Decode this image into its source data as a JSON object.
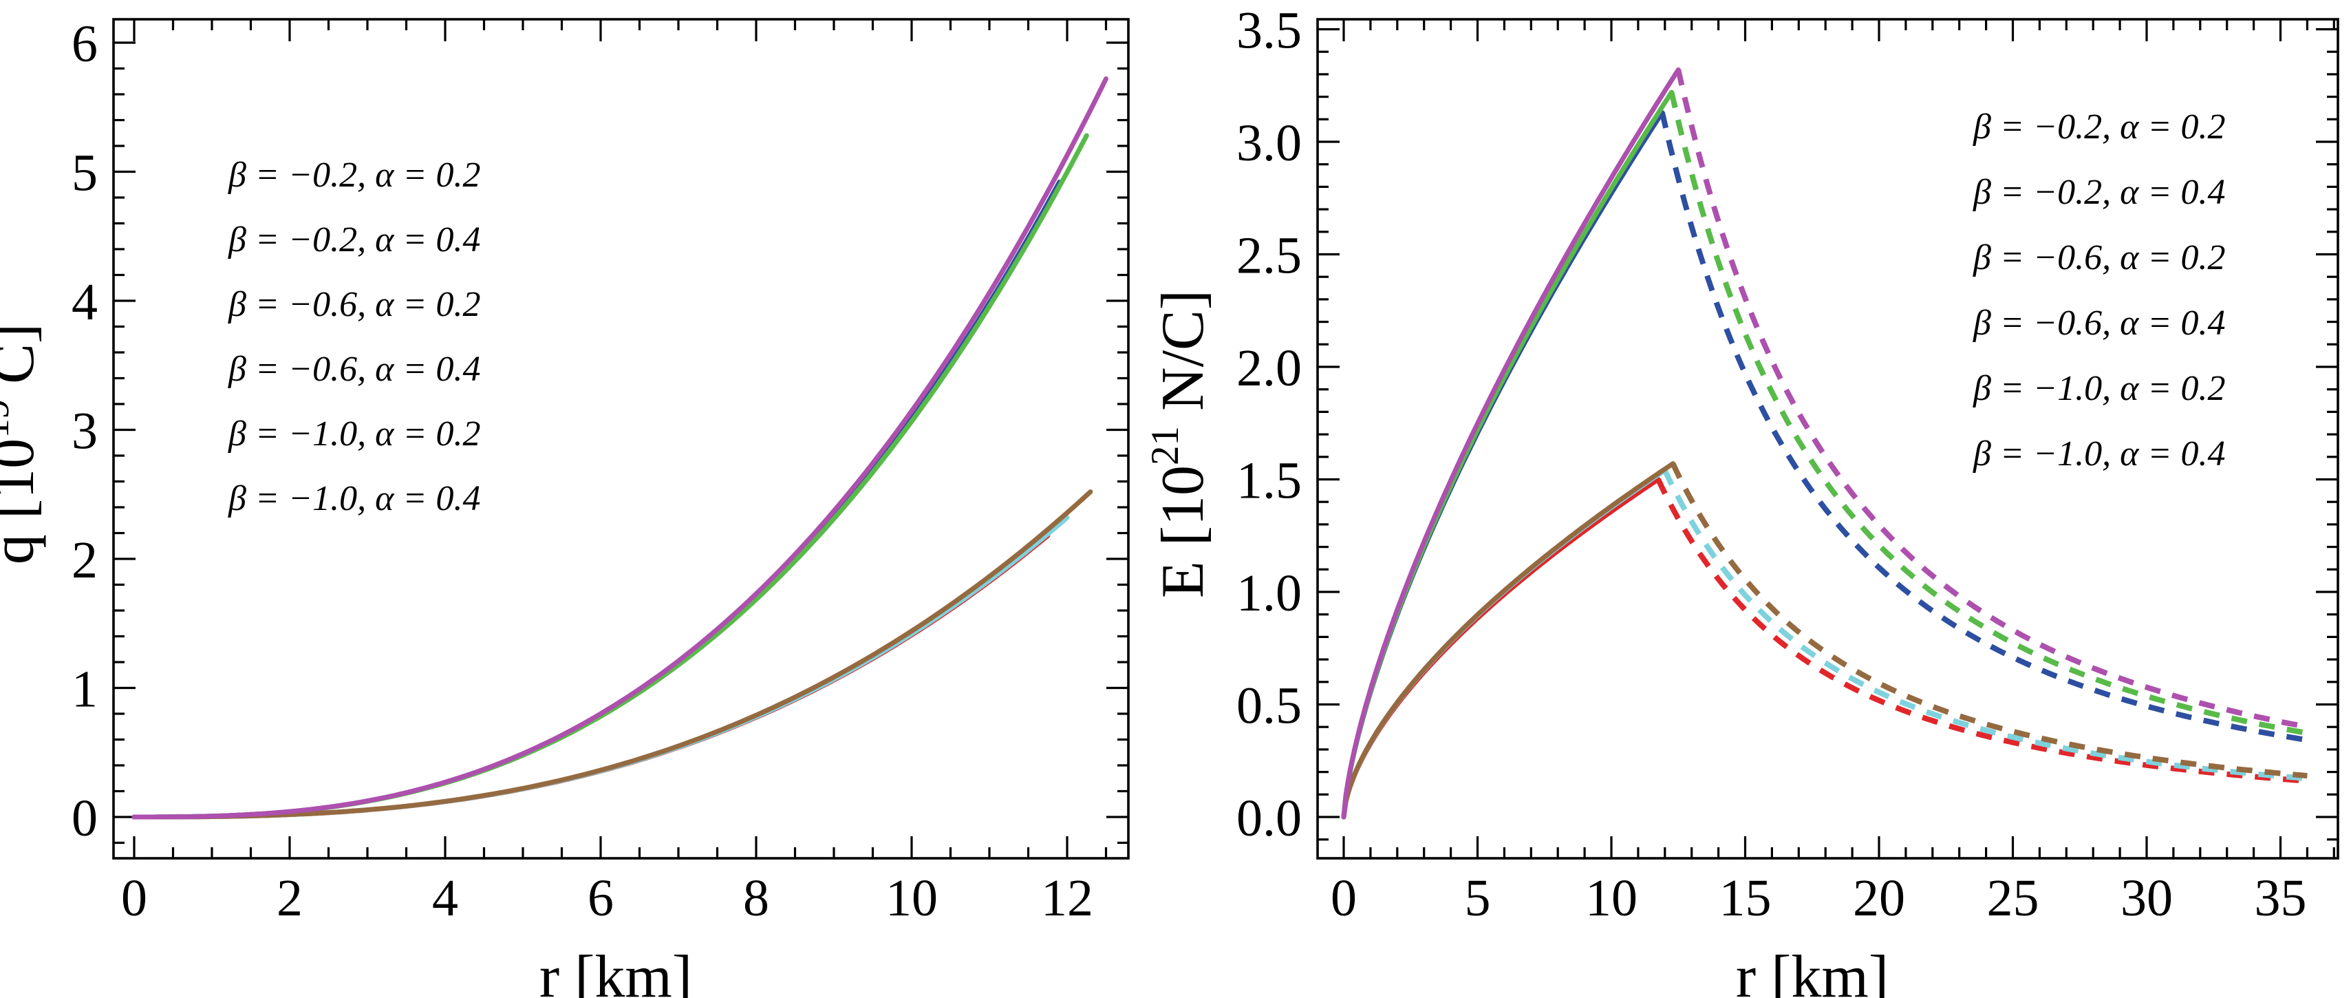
{
  "figure": {
    "description": "Two-panel line figure: total charge q and electric field E versus radial coordinate r for six parameter combinations of beta and alpha",
    "background": "#ffffff",
    "frame_color": "#000000"
  },
  "legend": {
    "entries": [
      {
        "label": "β = −0.2, α = 0.2",
        "beta": "-0.2",
        "alpha": "0.2",
        "color": "#e1262a",
        "color_name": "red"
      },
      {
        "label": "β = −0.2, α = 0.4",
        "beta": "-0.2",
        "alpha": "0.4",
        "color": "#2d4fa1",
        "color_name": "blue"
      },
      {
        "label": "β = −0.6, α = 0.2",
        "beta": "-0.6",
        "alpha": "0.2",
        "color": "#7dd2dd",
        "color_name": "cyan"
      },
      {
        "label": "β = −0.6, α = 0.4",
        "beta": "-0.6",
        "alpha": "0.4",
        "color": "#58ba49",
        "color_name": "green"
      },
      {
        "label": "β = −1.0, α = 0.2",
        "beta": "-1.0",
        "alpha": "0.2",
        "color": "#956a40",
        "color_name": "brown"
      },
      {
        "label": "β = −1.0, α = 0.4",
        "beta": "-1.0",
        "alpha": "0.4",
        "color": "#ad50ae",
        "color_name": "purple"
      }
    ]
  },
  "chart_data": [
    {
      "type": "line",
      "panel": "left",
      "title": "",
      "xlabel": "r [km]",
      "ylabel": "q [10^19 C]",
      "ylabel_parts": {
        "pre": "q [10",
        "sup": "19",
        "post": " C]"
      },
      "xlabel_parts": {
        "pre": "r [km]",
        "sup": "",
        "post": ""
      },
      "xlim": [
        -0.27,
        12.79
      ],
      "ylim": [
        -0.32,
        6.18
      ],
      "grid": false,
      "legend_position": "upper-left-inside",
      "x_ticks": {
        "major_values": [
          0,
          2,
          4,
          6,
          8,
          10,
          12
        ],
        "major_labels": [
          "0",
          "2",
          "4",
          "6",
          "8",
          "10",
          "12"
        ],
        "minor_step": 0.5
      },
      "y_ticks": {
        "major_values": [
          0,
          1,
          2,
          3,
          4,
          5,
          6
        ],
        "major_labels": [
          "0",
          "1",
          "2",
          "3",
          "4",
          "5",
          "6"
        ],
        "minor_step": 0.2
      },
      "series": [
        {
          "name": "β = −0.2, α = 0.2",
          "color_name": "red",
          "style": "solid",
          "model": {
            "kind": "power_rise",
            "r_end": 11.75,
            "v_end": 2.18,
            "exp": 2.7
          },
          "points": [
            [
              0,
              0
            ],
            [
              2,
              0.02
            ],
            [
              4,
              0.12
            ],
            [
              6,
              0.35
            ],
            [
              8,
              0.77
            ],
            [
              10,
              1.4
            ],
            [
              11.75,
              2.18
            ]
          ]
        },
        {
          "name": "β = −0.2, α = 0.4",
          "color_name": "blue",
          "style": "solid",
          "model": {
            "kind": "power_rise",
            "r_end": 11.9,
            "v_end": 4.92,
            "exp": 2.68
          },
          "points": [
            [
              0,
              0
            ],
            [
              2,
              0.04
            ],
            [
              4,
              0.27
            ],
            [
              6,
              0.79
            ],
            [
              8,
              1.7
            ],
            [
              10,
              3.09
            ],
            [
              11.9,
              4.92
            ]
          ]
        },
        {
          "name": "β = −0.6, α = 0.2",
          "color_name": "cyan",
          "style": "solid",
          "model": {
            "kind": "power_rise",
            "r_end": 12.0,
            "v_end": 2.32,
            "exp": 2.7
          },
          "points": [
            [
              0,
              0
            ],
            [
              2,
              0.02
            ],
            [
              4,
              0.12
            ],
            [
              6,
              0.36
            ],
            [
              8,
              0.78
            ],
            [
              10,
              1.41
            ],
            [
              12,
              2.32
            ]
          ]
        },
        {
          "name": "β = −0.6, α = 0.4",
          "color_name": "green",
          "style": "solid",
          "model": {
            "kind": "power_rise",
            "r_end": 12.25,
            "v_end": 5.28,
            "exp": 2.68
          },
          "points": [
            [
              0,
              0
            ],
            [
              2,
              0.04
            ],
            [
              4,
              0.28
            ],
            [
              6,
              0.78
            ],
            [
              8,
              1.67
            ],
            [
              10,
              3.04
            ],
            [
              12.25,
              5.28
            ]
          ]
        },
        {
          "name": "β = −1.0, α = 0.2",
          "color_name": "brown",
          "style": "solid",
          "model": {
            "kind": "power_rise",
            "r_end": 12.3,
            "v_end": 2.52,
            "exp": 2.7
          },
          "points": [
            [
              0,
              0
            ],
            [
              2,
              0.02
            ],
            [
              4,
              0.12
            ],
            [
              6,
              0.36
            ],
            [
              8,
              0.79
            ],
            [
              10,
              1.43
            ],
            [
              12.3,
              2.52
            ]
          ]
        },
        {
          "name": "β = −1.0, α = 0.4",
          "color_name": "purple",
          "style": "solid",
          "model": {
            "kind": "power_rise",
            "r_end": 12.5,
            "v_end": 5.72,
            "exp": 2.68
          },
          "points": [
            [
              0,
              0
            ],
            [
              2,
              0.04
            ],
            [
              4,
              0.28
            ],
            [
              6,
              0.79
            ],
            [
              8,
              1.69
            ],
            [
              10,
              3.12
            ],
            [
              12.5,
              5.72
            ]
          ]
        }
      ]
    },
    {
      "type": "line",
      "panel": "right",
      "title": "",
      "xlabel": "r [km]",
      "ylabel": "E [10^21 N/C]",
      "ylabel_parts": {
        "pre": "E [10",
        "sup": "21",
        "post": " N/C]"
      },
      "xlabel_parts": {
        "pre": "r [km]",
        "sup": "",
        "post": ""
      },
      "xlim": [
        -0.98,
        37.15
      ],
      "ylim": [
        -0.18,
        3.54
      ],
      "grid": false,
      "legend_position": "upper-right-inside",
      "x_ticks": {
        "major_values": [
          0,
          5,
          10,
          15,
          20,
          25,
          30,
          35
        ],
        "major_labels": [
          "0",
          "5",
          "10",
          "15",
          "20",
          "25",
          "30",
          "35"
        ],
        "minor_step": 1
      },
      "y_ticks": {
        "major_values": [
          0,
          0.5,
          1,
          1.5,
          2,
          2.5,
          3,
          3.5
        ],
        "major_labels": [
          "0.0",
          "0.5",
          "1.0",
          "1.5",
          "2.0",
          "2.5",
          "3.0",
          "3.5"
        ],
        "minor_step": 0.1
      },
      "series": [
        {
          "name": "β = −0.2, α = 0.2",
          "color_name": "red",
          "style": "solid-then-dashed",
          "model": {
            "kind": "rise_then_inverse_square",
            "r_surface": 11.75,
            "v_peak": 1.5,
            "rise_exp": 0.62,
            "r_max": 36
          },
          "points_interior": [
            [
              0,
              0
            ],
            [
              5,
              0.88
            ],
            [
              10,
              1.36
            ],
            [
              11.75,
              1.5
            ]
          ],
          "points_exterior": [
            [
              15,
              0.92
            ],
            [
              20,
              0.52
            ],
            [
              25,
              0.33
            ],
            [
              30,
              0.23
            ],
            [
              36,
              0.16
            ]
          ]
        },
        {
          "name": "β = −0.2, α = 0.4",
          "color_name": "blue",
          "style": "solid-then-dashed",
          "model": {
            "kind": "rise_then_inverse_square",
            "r_surface": 11.9,
            "v_peak": 3.13,
            "rise_exp": 0.7,
            "r_max": 36
          },
          "points_interior": [
            [
              0,
              0
            ],
            [
              5,
              1.71
            ],
            [
              10,
              2.77
            ],
            [
              11.9,
              3.13
            ]
          ],
          "points_exterior": [
            [
              15,
              1.97
            ],
            [
              20,
              1.11
            ],
            [
              25,
              0.71
            ],
            [
              30,
              0.49
            ],
            [
              36,
              0.34
            ]
          ]
        },
        {
          "name": "β = −0.6, α = 0.2",
          "color_name": "cyan",
          "style": "solid-then-dashed",
          "model": {
            "kind": "rise_then_inverse_square",
            "r_surface": 12.0,
            "v_peak": 1.54,
            "rise_exp": 0.62,
            "r_max": 36
          },
          "points_interior": [
            [
              0,
              0
            ],
            [
              5,
              0.89
            ],
            [
              10,
              1.37
            ],
            [
              12,
              1.54
            ]
          ],
          "points_exterior": [
            [
              15,
              0.98
            ],
            [
              20,
              0.55
            ],
            [
              25,
              0.35
            ],
            [
              30,
              0.25
            ],
            [
              36,
              0.17
            ]
          ]
        },
        {
          "name": "β = −0.6, α = 0.4",
          "color_name": "green",
          "style": "solid-then-dashed",
          "model": {
            "kind": "rise_then_inverse_square",
            "r_surface": 12.25,
            "v_peak": 3.22,
            "rise_exp": 0.7,
            "r_max": 36
          },
          "points_interior": [
            [
              0,
              0
            ],
            [
              5,
              1.71
            ],
            [
              10,
              2.79
            ],
            [
              12.25,
              3.22
            ]
          ],
          "points_exterior": [
            [
              15,
              2.15
            ],
            [
              20,
              1.21
            ],
            [
              25,
              0.77
            ],
            [
              30,
              0.54
            ],
            [
              36,
              0.37
            ]
          ]
        },
        {
          "name": "β = −1.0, α = 0.2",
          "color_name": "brown",
          "style": "solid-then-dashed",
          "model": {
            "kind": "rise_then_inverse_square",
            "r_surface": 12.3,
            "v_peak": 1.57,
            "rise_exp": 0.62,
            "r_max": 36
          },
          "points_interior": [
            [
              0,
              0
            ],
            [
              5,
              0.9
            ],
            [
              10,
              1.38
            ],
            [
              12.3,
              1.57
            ]
          ],
          "points_exterior": [
            [
              15,
              1.05
            ],
            [
              20,
              0.59
            ],
            [
              25,
              0.38
            ],
            [
              30,
              0.26
            ],
            [
              36,
              0.18
            ]
          ]
        },
        {
          "name": "β = −1.0, α = 0.4",
          "color_name": "purple",
          "style": "solid-then-dashed",
          "model": {
            "kind": "rise_then_inverse_square",
            "r_surface": 12.5,
            "v_peak": 3.32,
            "rise_exp": 0.7,
            "r_max": 36
          },
          "points_interior": [
            [
              0,
              0
            ],
            [
              5,
              1.75
            ],
            [
              10,
              2.84
            ],
            [
              12.5,
              3.32
            ]
          ],
          "points_exterior": [
            [
              15,
              2.31
            ],
            [
              20,
              1.3
            ],
            [
              25,
              0.83
            ],
            [
              30,
              0.58
            ],
            [
              36,
              0.4
            ]
          ]
        }
      ]
    }
  ]
}
